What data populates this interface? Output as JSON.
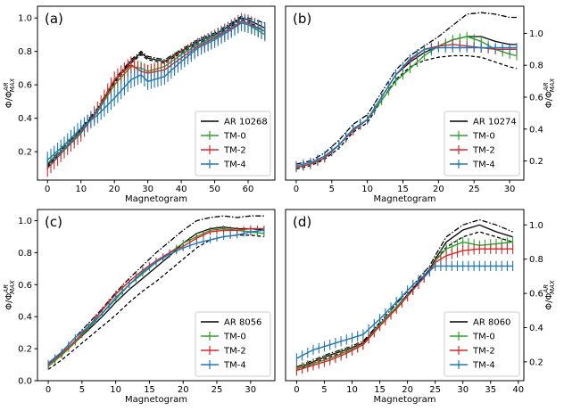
{
  "figure": {
    "ylabel": "Φ/Φ",
    "ylabel_sup": "AR",
    "ylabel_sub": "MAX",
    "xlabel": "Magnetogram"
  },
  "colors": {
    "AR": "#000000",
    "TM-0": "#2ca02c",
    "TM-2": "#d62728",
    "TM-4": "#1f77b4"
  },
  "chart_data": [
    {
      "type": "line",
      "panel_label": "(a)",
      "xlabel": "Magnetogram",
      "ylabel": "Φ/Φ_MAX^AR",
      "xlim": [
        -3,
        68
      ],
      "ylim": [
        0.03,
        1.07
      ],
      "xticks": [
        0,
        10,
        20,
        30,
        40,
        50,
        60
      ],
      "yticks": [
        0.2,
        0.4,
        0.6,
        0.8,
        1.0
      ],
      "ytick_labels": [
        "0.2",
        "0.4",
        "0.6",
        "0.8",
        "1.0"
      ],
      "yaxis_side": "left",
      "legend_position": "bottom-right",
      "legend": [
        "AR 10268",
        "TM-0",
        "TM-2",
        "TM-4"
      ],
      "x": [
        0,
        5,
        10,
        15,
        20,
        25,
        28,
        30,
        35,
        40,
        45,
        50,
        55,
        58,
        60,
        65
      ],
      "series": [
        {
          "name": "AR 10268",
          "style": "solid",
          "values": [
            0.12,
            0.22,
            0.33,
            0.45,
            0.62,
            0.74,
            0.79,
            0.76,
            0.74,
            0.8,
            0.86,
            0.9,
            0.96,
            1.0,
            0.99,
            0.94
          ]
        },
        {
          "name": "AR 10268 upper",
          "style": "dashdot",
          "values": [
            0.13,
            0.23,
            0.34,
            0.46,
            0.63,
            0.75,
            0.8,
            0.77,
            0.75,
            0.81,
            0.87,
            0.91,
            0.97,
            1.01,
            1.0,
            0.97
          ]
        },
        {
          "name": "AR 10268 lower",
          "style": "dashed",
          "values": [
            0.11,
            0.21,
            0.32,
            0.44,
            0.61,
            0.73,
            0.78,
            0.75,
            0.73,
            0.79,
            0.85,
            0.89,
            0.95,
            0.99,
            0.98,
            0.92
          ]
        },
        {
          "name": "TM-0",
          "error": 0.04,
          "values": [
            0.13,
            0.22,
            0.32,
            0.44,
            0.6,
            0.71,
            0.7,
            0.68,
            0.71,
            0.78,
            0.84,
            0.89,
            0.94,
            0.97,
            0.96,
            0.9
          ]
        },
        {
          "name": "TM-2",
          "error": 0.05,
          "values": [
            0.1,
            0.21,
            0.31,
            0.45,
            0.63,
            0.72,
            0.68,
            0.67,
            0.69,
            0.76,
            0.83,
            0.88,
            0.94,
            0.98,
            0.97,
            0.92
          ]
        },
        {
          "name": "TM-4",
          "error": 0.05,
          "values": [
            0.15,
            0.24,
            0.34,
            0.42,
            0.52,
            0.63,
            0.66,
            0.62,
            0.65,
            0.74,
            0.82,
            0.87,
            0.93,
            0.97,
            0.96,
            0.92
          ]
        }
      ]
    },
    {
      "type": "line",
      "panel_label": "(b)",
      "xlabel": "Magnetogram",
      "ylabel": "Φ/Φ_MAX^AR",
      "xlim": [
        -1.5,
        32
      ],
      "ylim": [
        0.08,
        1.17
      ],
      "xticks": [
        0,
        5,
        10,
        15,
        20,
        25,
        30
      ],
      "yticks": [
        0.2,
        0.4,
        0.6,
        0.8,
        1.0
      ],
      "ytick_labels": [
        "0.2",
        "0.4",
        "0.6",
        "0.8",
        "1.0"
      ],
      "yaxis_side": "right",
      "legend_position": "bottom-right",
      "legend": [
        "AR 10274",
        "TM-0",
        "TM-2",
        "TM-4"
      ],
      "x": [
        0,
        2,
        4,
        6,
        8,
        10,
        12,
        14,
        16,
        18,
        20,
        22,
        24,
        26,
        28,
        30,
        31
      ],
      "series": [
        {
          "name": "AR 10274",
          "style": "solid",
          "values": [
            0.16,
            0.18,
            0.22,
            0.3,
            0.4,
            0.46,
            0.6,
            0.74,
            0.82,
            0.88,
            0.92,
            0.96,
            0.98,
            0.98,
            0.95,
            0.93,
            0.93
          ]
        },
        {
          "name": "AR 10274 upper",
          "style": "dashdot",
          "values": [
            0.18,
            0.2,
            0.25,
            0.33,
            0.43,
            0.49,
            0.63,
            0.77,
            0.86,
            0.92,
            0.98,
            1.05,
            1.12,
            1.13,
            1.12,
            1.1,
            1.1
          ]
        },
        {
          "name": "AR 10274 lower",
          "style": "dashed",
          "values": [
            0.15,
            0.17,
            0.21,
            0.28,
            0.38,
            0.44,
            0.58,
            0.71,
            0.79,
            0.83,
            0.85,
            0.86,
            0.86,
            0.85,
            0.82,
            0.79,
            0.78
          ]
        },
        {
          "name": "TM-0",
          "error": 0.03,
          "values": [
            0.16,
            0.18,
            0.22,
            0.3,
            0.4,
            0.46,
            0.58,
            0.7,
            0.78,
            0.86,
            0.92,
            0.96,
            0.98,
            0.95,
            0.9,
            0.87,
            0.86
          ]
        },
        {
          "name": "TM-2",
          "error": 0.03,
          "values": [
            0.16,
            0.18,
            0.22,
            0.3,
            0.39,
            0.46,
            0.6,
            0.74,
            0.83,
            0.9,
            0.92,
            0.93,
            0.92,
            0.91,
            0.9,
            0.9,
            0.9
          ]
        },
        {
          "name": "TM-4",
          "error": 0.03,
          "values": [
            0.17,
            0.19,
            0.23,
            0.3,
            0.4,
            0.46,
            0.6,
            0.74,
            0.84,
            0.9,
            0.91,
            0.91,
            0.91,
            0.91,
            0.91,
            0.91,
            0.91
          ]
        }
      ]
    },
    {
      "type": "line",
      "panel_label": "(c)",
      "xlabel": "Magnetogram",
      "ylabel": "Φ/Φ_MAX^AR",
      "xlim": [
        -1.6,
        33.6
      ],
      "ylim": [
        0.0,
        1.07
      ],
      "xticks": [
        0,
        5,
        10,
        15,
        20,
        25,
        30
      ],
      "yticks": [
        0.0,
        0.2,
        0.4,
        0.6,
        0.8,
        1.0
      ],
      "ytick_labels": [
        "0.0",
        "0.2",
        "0.4",
        "0.6",
        "0.8",
        "1.0"
      ],
      "yaxis_side": "left",
      "legend_position": "bottom-right",
      "legend": [
        "AR 8056",
        "TM-0",
        "TM-2",
        "TM-4"
      ],
      "x": [
        0,
        2,
        4,
        6,
        8,
        10,
        12,
        14,
        16,
        18,
        20,
        22,
        24,
        26,
        28,
        30,
        32
      ],
      "series": [
        {
          "name": "AR 8056",
          "style": "solid",
          "values": [
            0.09,
            0.16,
            0.24,
            0.32,
            0.4,
            0.49,
            0.57,
            0.64,
            0.71,
            0.78,
            0.86,
            0.92,
            0.95,
            0.96,
            0.95,
            0.95,
            0.94
          ]
        },
        {
          "name": "AR 8056 upper",
          "style": "dashdot",
          "values": [
            0.1,
            0.18,
            0.27,
            0.36,
            0.45,
            0.55,
            0.64,
            0.72,
            0.8,
            0.87,
            0.94,
            1.0,
            1.02,
            1.03,
            1.02,
            1.03,
            1.03
          ]
        },
        {
          "name": "AR 8056 lower",
          "style": "dashed",
          "values": [
            0.07,
            0.13,
            0.2,
            0.27,
            0.34,
            0.41,
            0.49,
            0.56,
            0.62,
            0.69,
            0.76,
            0.83,
            0.88,
            0.9,
            0.91,
            0.91,
            0.9
          ]
        },
        {
          "name": "TM-0",
          "error": 0.02,
          "values": [
            0.09,
            0.16,
            0.24,
            0.33,
            0.42,
            0.51,
            0.6,
            0.67,
            0.74,
            0.8,
            0.86,
            0.9,
            0.94,
            0.95,
            0.94,
            0.93,
            0.92
          ]
        },
        {
          "name": "TM-2",
          "error": 0.02,
          "values": [
            0.1,
            0.17,
            0.25,
            0.34,
            0.44,
            0.54,
            0.62,
            0.69,
            0.75,
            0.8,
            0.84,
            0.89,
            0.93,
            0.94,
            0.94,
            0.95,
            0.95
          ]
        },
        {
          "name": "TM-4",
          "error": 0.02,
          "values": [
            0.11,
            0.18,
            0.27,
            0.34,
            0.42,
            0.52,
            0.6,
            0.68,
            0.74,
            0.79,
            0.83,
            0.86,
            0.88,
            0.9,
            0.91,
            0.93,
            0.94
          ]
        }
      ]
    },
    {
      "type": "line",
      "panel_label": "(d)",
      "xlabel": "Magnetogram",
      "ylabel": "Φ/Φ_MAX^AR",
      "xlim": [
        -2,
        41
      ],
      "ylim": [
        0.09,
        1.09
      ],
      "xticks": [
        0,
        5,
        10,
        15,
        20,
        25,
        30,
        35,
        40
      ],
      "yticks": [
        0.2,
        0.4,
        0.6,
        0.8,
        1.0
      ],
      "ytick_labels": [
        "0.2",
        "0.4",
        "0.6",
        "0.8",
        "1.0"
      ],
      "yaxis_side": "right",
      "legend_position": "bottom-right",
      "legend": [
        "AR 8060",
        "TM-0",
        "TM-2",
        "TM-4"
      ],
      "x": [
        0,
        3,
        6,
        9,
        12,
        15,
        18,
        21,
        24,
        25,
        27,
        30,
        33,
        36,
        39
      ],
      "series": [
        {
          "name": "AR 8060",
          "style": "solid",
          "values": [
            0.16,
            0.2,
            0.24,
            0.27,
            0.31,
            0.42,
            0.52,
            0.63,
            0.74,
            0.8,
            0.9,
            0.97,
            1.0,
            0.96,
            0.93
          ]
        },
        {
          "name": "AR 8060 upper",
          "style": "dashdot",
          "values": [
            0.17,
            0.21,
            0.25,
            0.28,
            0.32,
            0.43,
            0.54,
            0.65,
            0.76,
            0.82,
            0.93,
            1.0,
            1.03,
            1.0,
            0.96
          ]
        },
        {
          "name": "AR 8060 lower",
          "style": "dashed",
          "values": [
            0.15,
            0.19,
            0.23,
            0.26,
            0.3,
            0.41,
            0.51,
            0.62,
            0.73,
            0.79,
            0.87,
            0.93,
            0.96,
            0.93,
            0.9
          ]
        },
        {
          "name": "TM-0",
          "error": 0.03,
          "values": [
            0.16,
            0.19,
            0.22,
            0.26,
            0.3,
            0.42,
            0.52,
            0.62,
            0.73,
            0.79,
            0.86,
            0.9,
            0.88,
            0.89,
            0.9
          ]
        },
        {
          "name": "TM-2",
          "error": 0.03,
          "values": [
            0.15,
            0.18,
            0.21,
            0.25,
            0.3,
            0.41,
            0.51,
            0.62,
            0.73,
            0.78,
            0.82,
            0.85,
            0.86,
            0.86,
            0.86
          ]
        },
        {
          "name": "TM-4",
          "error": 0.03,
          "values": [
            0.22,
            0.27,
            0.3,
            0.33,
            0.36,
            0.45,
            0.55,
            0.65,
            0.73,
            0.76,
            0.76,
            0.76,
            0.76,
            0.76,
            0.76
          ]
        }
      ]
    }
  ]
}
